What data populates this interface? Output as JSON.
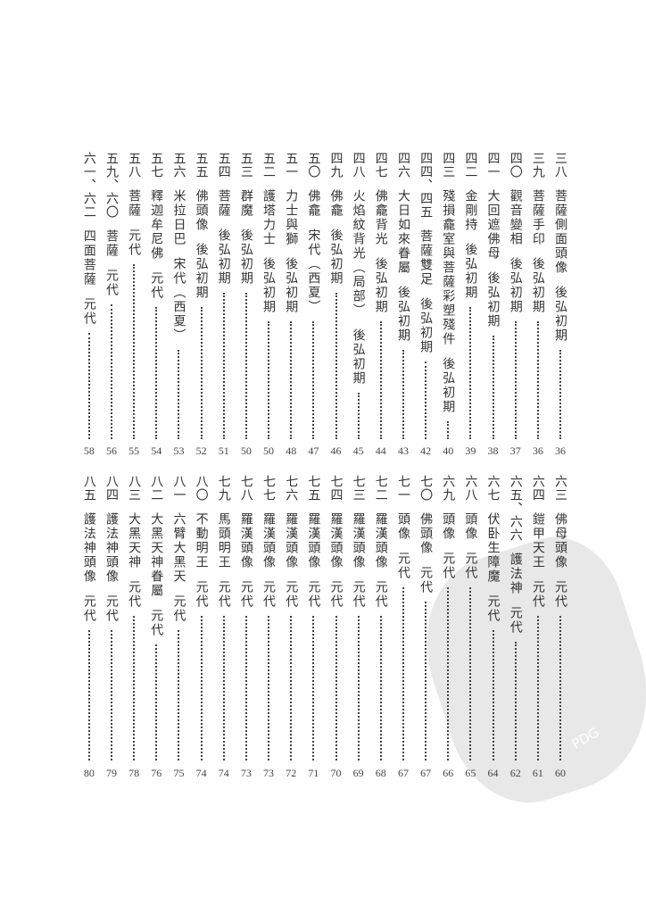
{
  "toc_top": [
    {
      "num": "三八",
      "title": "菩薩側面頭像",
      "era": "後弘初期",
      "page": "36"
    },
    {
      "num": "三九",
      "title": "菩薩手印",
      "era": "後弘初期",
      "page": "36"
    },
    {
      "num": "四〇",
      "title": "觀音變相",
      "era": "後弘初期",
      "page": "37"
    },
    {
      "num": "四一",
      "title": "大回遮佛母",
      "era": "後弘初期",
      "page": "38"
    },
    {
      "num": "四二",
      "title": "金剛持",
      "era": "後弘初期",
      "page": "39"
    },
    {
      "num": "四三",
      "title": "殘損龕室與菩薩彩塑殘件",
      "era": "後弘初期",
      "page": "40"
    },
    {
      "num": "四四、四五",
      "title": "菩薩雙足",
      "era": "後弘初期",
      "page": "42"
    },
    {
      "num": "四六",
      "title": "大日如來眷屬",
      "era": "後弘初期",
      "page": "43"
    },
    {
      "num": "四七",
      "title": "佛龕背光",
      "era": "後弘初期",
      "page": "44"
    },
    {
      "num": "四八",
      "title": "火焰紋背光（局部）",
      "era": "後弘初期",
      "page": "45"
    },
    {
      "num": "四九",
      "title": "佛龕",
      "era": "後弘初期",
      "page": "46"
    },
    {
      "num": "五〇",
      "title": "佛龕",
      "era": "宋代（西夏）",
      "page": "47"
    },
    {
      "num": "五一",
      "title": "力士與獅",
      "era": "後弘初期",
      "page": "48"
    },
    {
      "num": "五二",
      "title": "護塔力士",
      "era": "後弘初期",
      "page": "50"
    },
    {
      "num": "五三",
      "title": "群魔",
      "era": "後弘初期",
      "page": "50"
    },
    {
      "num": "五四",
      "title": "菩薩",
      "era": "後弘初期",
      "page": "51"
    },
    {
      "num": "五五",
      "title": "佛頭像",
      "era": "後弘初期",
      "page": "52"
    },
    {
      "num": "五六",
      "title": "米拉日巴",
      "era": "宋代（西夏）",
      "page": "53"
    },
    {
      "num": "五七",
      "title": "釋迦牟尼佛",
      "era": "元代",
      "page": "54"
    },
    {
      "num": "五八",
      "title": "菩薩",
      "era": "元代",
      "page": "55"
    },
    {
      "num": "五九、六〇",
      "title": "菩薩",
      "era": "元代",
      "page": "56"
    },
    {
      "num": "六一、六二",
      "title": "四面菩薩",
      "era": "元代",
      "page": "58"
    }
  ],
  "toc_bottom": [
    {
      "num": "六三",
      "title": "佛母頭像",
      "era": "元代",
      "page": "60"
    },
    {
      "num": "六四",
      "title": "鎧甲天王",
      "era": "元代",
      "page": "61"
    },
    {
      "num": "六五、六六",
      "title": "護法神",
      "era": "元代",
      "page": "62"
    },
    {
      "num": "六七",
      "title": "伏卧生障魔",
      "era": "元代",
      "page": "64"
    },
    {
      "num": "六八",
      "title": "頭像",
      "era": "元代",
      "page": "65"
    },
    {
      "num": "六九",
      "title": "頭像",
      "era": "元代",
      "page": "66"
    },
    {
      "num": "七〇",
      "title": "佛頭像",
      "era": "元代",
      "page": "67"
    },
    {
      "num": "七一",
      "title": "頭像",
      "era": "元代",
      "page": "67"
    },
    {
      "num": "七二",
      "title": "羅漢頭像",
      "era": "元代",
      "page": "68"
    },
    {
      "num": "七三",
      "title": "羅漢頭像",
      "era": "元代",
      "page": "69"
    },
    {
      "num": "七四",
      "title": "羅漢頭像",
      "era": "元代",
      "page": "70"
    },
    {
      "num": "七五",
      "title": "羅漢頭像",
      "era": "元代",
      "page": "71"
    },
    {
      "num": "七六",
      "title": "羅漢頭像",
      "era": "元代",
      "page": "72"
    },
    {
      "num": "七七",
      "title": "羅漢頭像",
      "era": "元代",
      "page": "73"
    },
    {
      "num": "七八",
      "title": "羅漢頭像",
      "era": "元代",
      "page": "73"
    },
    {
      "num": "七九",
      "title": "馬頭明王",
      "era": "元代",
      "page": "74"
    },
    {
      "num": "八〇",
      "title": "不動明王",
      "era": "元代",
      "page": "74"
    },
    {
      "num": "八一",
      "title": "六臂大黑天",
      "era": "元代",
      "page": "75"
    },
    {
      "num": "八二",
      "title": "大黑天神眷屬",
      "era": "元代",
      "page": "76"
    },
    {
      "num": "八三",
      "title": "大黑天神",
      "era": "元代",
      "page": "78"
    },
    {
      "num": "八四",
      "title": "護法神頭像",
      "era": "元代",
      "page": "79"
    },
    {
      "num": "八五",
      "title": "護法神頭像",
      "era": "元代",
      "page": "80"
    }
  ],
  "watermark": {
    "text": "PDG",
    "color": "#e6e6e6"
  }
}
